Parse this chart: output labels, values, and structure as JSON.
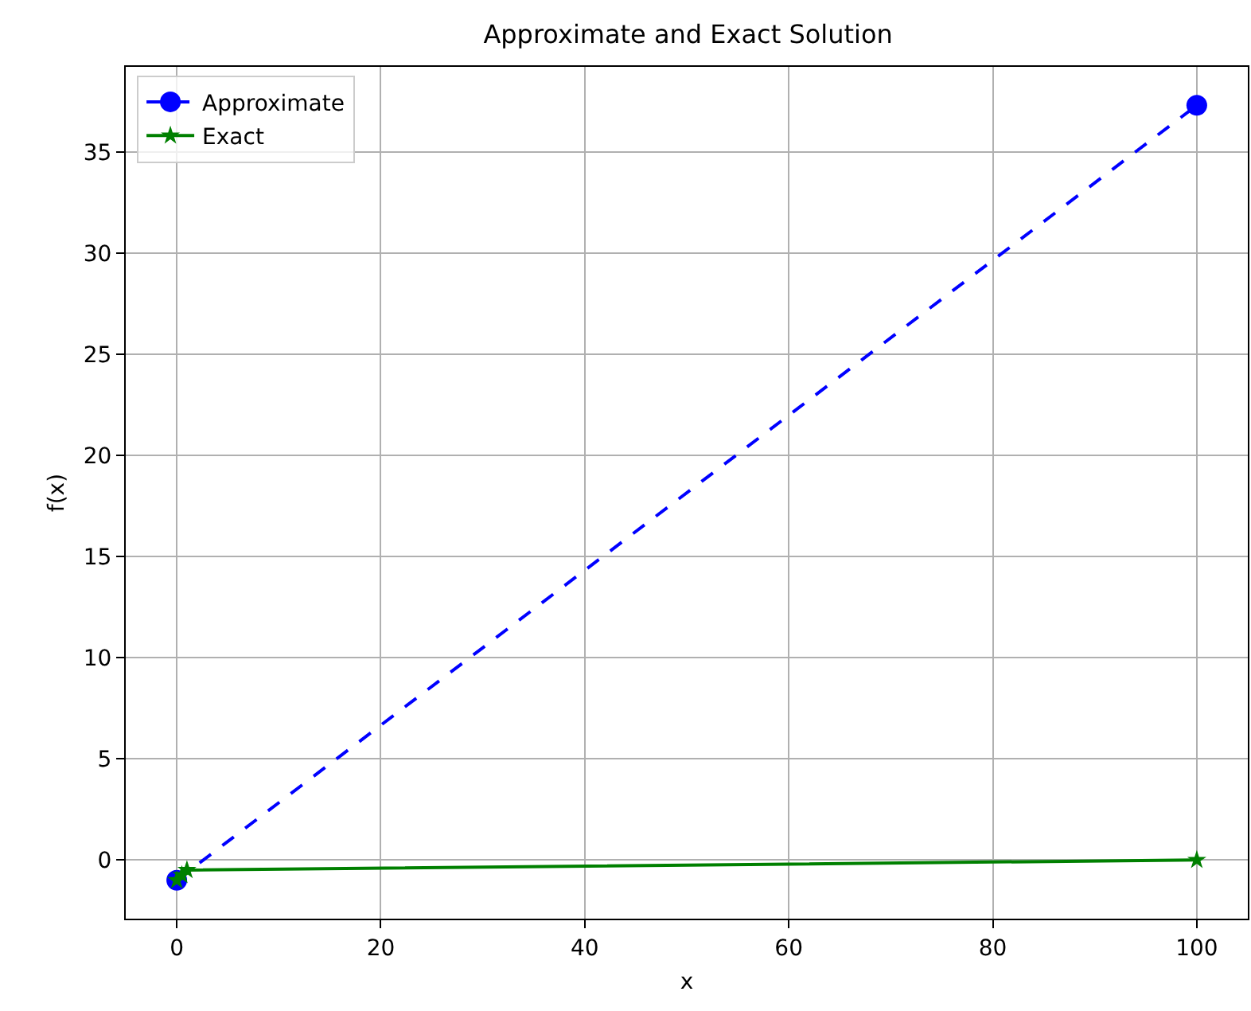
{
  "chart_data": {
    "type": "line",
    "title": "Approximate and Exact Solution",
    "xlabel": "x",
    "ylabel": "f(x)",
    "xlim": [
      -5,
      105
    ],
    "xticks": [
      0,
      20,
      40,
      60,
      80,
      100
    ],
    "ylim": [
      -2.9,
      39.2
    ],
    "yticks": [
      0,
      5,
      10,
      15,
      20,
      25,
      30,
      35
    ],
    "grid": true,
    "legend": "top left",
    "series": [
      {
        "name": "Approximate",
        "color": "#0000ff",
        "x": [
          0,
          100
        ],
        "values": [
          -1,
          37.3
        ],
        "marker": "circle",
        "line_style": "dashed"
      },
      {
        "name": "Exact",
        "color": "#008000",
        "x": [
          0,
          0.5,
          1,
          100
        ],
        "values": [
          -1,
          -0.75,
          -0.5,
          0
        ],
        "marker": "star",
        "line_style": "solid"
      }
    ]
  }
}
